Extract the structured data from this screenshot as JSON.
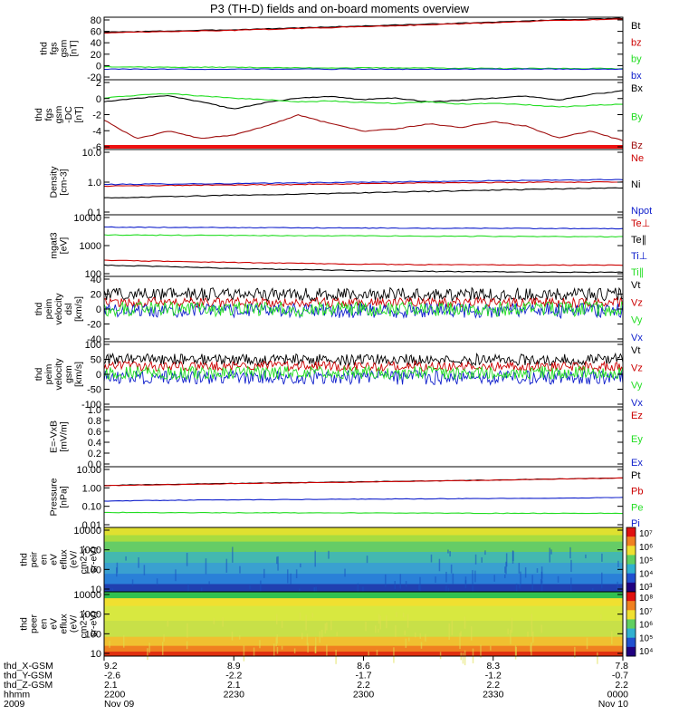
{
  "title": "P3 (TH-D) fields and on-board moments overview",
  "colors": {
    "black": "#000000",
    "red": "#cc0000",
    "green": "#22dd22",
    "blue": "#1020cc",
    "brown": "#a01010"
  },
  "chart_data": [
    {
      "type": "line",
      "ylabel": [
        "thd",
        "fgs",
        "gsm",
        "[nT]"
      ],
      "yticks": [
        "80",
        "60",
        "40",
        "20",
        "0",
        "-20"
      ],
      "ylim": [
        -20,
        80
      ],
      "legend": [
        {
          "label": "Bt",
          "color": "#000000"
        },
        {
          "label": "bz",
          "color": "#cc0000"
        },
        {
          "label": "by",
          "color": "#22dd22"
        },
        {
          "label": "bx",
          "color": "#1020cc"
        }
      ],
      "series": [
        {
          "name": "Bt",
          "color": "#000000",
          "values": [
            56,
            58,
            60,
            63,
            66,
            69,
            72,
            76,
            78
          ]
        },
        {
          "name": "bz",
          "color": "#cc0000",
          "values": [
            55,
            57,
            59,
            62,
            65,
            68,
            71,
            75,
            77
          ]
        },
        {
          "name": "by",
          "color": "#22dd22",
          "values": [
            1,
            0,
            0,
            -1,
            -1,
            -1,
            -2,
            -2,
            -2
          ]
        },
        {
          "name": "bx",
          "color": "#1020cc",
          "values": [
            -3,
            -3,
            -3,
            -3,
            -3,
            -3,
            -3,
            -3,
            -3
          ]
        }
      ]
    },
    {
      "type": "line",
      "ylabel": [
        "thd",
        "fgs",
        "gsm",
        "-DC",
        "[nT]"
      ],
      "yticks": [
        "2",
        "0",
        "-2",
        "-4",
        "-6"
      ],
      "ylim": [
        -7,
        2.5
      ],
      "legend": [
        {
          "label": "Bx",
          "color": "#000000"
        },
        {
          "label": "By",
          "color": "#22dd22"
        },
        {
          "label": "Bz",
          "color": "#a01010"
        }
      ],
      "series": [
        {
          "name": "Bx",
          "color": "#000000",
          "values": [
            -0.5,
            0,
            0.3,
            -0.5,
            -1.5,
            -0.6,
            0,
            0.2,
            -0.2,
            0,
            -0.5,
            -0.3,
            0,
            0.3,
            -0.3,
            0.5,
            1
          ]
        },
        {
          "name": "By",
          "color": "#22dd22",
          "values": [
            0,
            0.4,
            0.6,
            0.3,
            0,
            -0.2,
            -0.5,
            -0.4,
            -0.6,
            -0.7,
            -0.5,
            -0.8,
            -0.7,
            -0.9,
            -1.2,
            -1,
            -0.8
          ]
        },
        {
          "name": "Bz",
          "color": "#a01010",
          "values": [
            -3,
            -5.5,
            -4.5,
            -5.5,
            -5,
            -3.8,
            -2.3,
            -3.5,
            -4.5,
            -4.2,
            -3.5,
            -4,
            -3.2,
            -3.8,
            -5.4,
            -4.5,
            -5.8
          ]
        }
      ]
    },
    {
      "type": "line",
      "log": true,
      "ylabel": [
        "Density",
        "[cm-3]"
      ],
      "yticks": [
        "10.0",
        "1.0",
        "0.1"
      ],
      "ylim": [
        0.1,
        10
      ],
      "legend": [
        {
          "label": "Ne",
          "color": "#cc0000"
        },
        {
          "label": "Ni",
          "color": "#000000"
        },
        {
          "label": "Npot",
          "color": "#1020cc"
        }
      ],
      "series": [
        {
          "name": "Ne",
          "color": "#cc0000",
          "values": [
            0.75,
            0.8,
            0.82,
            0.85,
            0.9,
            0.95,
            0.98,
            0.99,
            1.0
          ]
        },
        {
          "name": "Ni",
          "color": "#000000",
          "values": [
            0.33,
            0.36,
            0.4,
            0.43,
            0.47,
            0.52,
            0.57,
            0.62,
            0.68
          ]
        },
        {
          "name": "Npot",
          "color": "#1020cc",
          "values": [
            0.85,
            0.88,
            0.9,
            0.95,
            1.0,
            1.05,
            1.1,
            1.15,
            1.2
          ]
        }
      ]
    },
    {
      "type": "line",
      "log": true,
      "ylabel": [
        "mgat3",
        "[eV]"
      ],
      "yticks": [
        "10000",
        "1000",
        "100"
      ],
      "ylim": [
        100,
        15000
      ],
      "legend": [
        {
          "label": "Te⊥",
          "color": "#cc0000"
        },
        {
          "label": "Te∥",
          "color": "#000000"
        },
        {
          "label": "Ti⊥",
          "color": "#1020cc"
        },
        {
          "label": "Ti∥",
          "color": "#22dd22"
        }
      ],
      "series": [
        {
          "name": "Ti⊥",
          "color": "#1020cc",
          "values": [
            5500,
            5400,
            5300,
            5200,
            5100,
            5000,
            5000,
            4900,
            4800
          ]
        },
        {
          "name": "Ti∥",
          "color": "#22dd22",
          "values": [
            2900,
            2850,
            2800,
            2750,
            2700,
            2650,
            2600,
            2550,
            2500
          ]
        },
        {
          "name": "Te⊥",
          "color": "#cc0000",
          "values": [
            370,
            340,
            310,
            290,
            270,
            260,
            255,
            250,
            250
          ]
        },
        {
          "name": "Te∥",
          "color": "#000000",
          "values": [
            250,
            220,
            190,
            175,
            160,
            150,
            145,
            140,
            140
          ]
        }
      ]
    },
    {
      "type": "line",
      "noisy": true,
      "ylabel": [
        "thd",
        "peim",
        "velocity",
        "dsl",
        "[km/s]"
      ],
      "yticks": [
        "40",
        "20",
        "0",
        "-20",
        "-40"
      ],
      "ylim": [
        -40,
        40
      ],
      "legend": [
        {
          "label": "Vt",
          "color": "#000000"
        },
        {
          "label": "Vz",
          "color": "#cc0000"
        },
        {
          "label": "Vy",
          "color": "#22dd22"
        },
        {
          "label": "Vx",
          "color": "#1020cc"
        }
      ],
      "series": [
        {
          "name": "Vt",
          "color": "#000000",
          "center": 18,
          "spread": 8
        },
        {
          "name": "Vz",
          "color": "#cc0000",
          "center": 8,
          "spread": 6
        },
        {
          "name": "Vx",
          "color": "#1020cc",
          "center": -2,
          "spread": 9
        },
        {
          "name": "Vy",
          "color": "#22dd22",
          "center": 0,
          "spread": 9
        }
      ]
    },
    {
      "type": "line",
      "noisy": true,
      "ylabel": [
        "thd",
        "peim",
        "velocity",
        "gsm",
        "[km/s]"
      ],
      "yticks": [
        "100",
        "50",
        "0",
        "-50",
        "-100"
      ],
      "ylim": [
        -100,
        100
      ],
      "legend": [
        {
          "label": "Vt",
          "color": "#000000"
        },
        {
          "label": "Vz",
          "color": "#cc0000"
        },
        {
          "label": "Vy",
          "color": "#22dd22"
        },
        {
          "label": "Vx",
          "color": "#1020cc"
        }
      ],
      "series": [
        {
          "name": "Vt",
          "color": "#000000",
          "center": 45,
          "spread": 18
        },
        {
          "name": "Vz",
          "color": "#cc0000",
          "center": 25,
          "spread": 15
        },
        {
          "name": "Vx",
          "color": "#1020cc",
          "center": -10,
          "spread": 22
        },
        {
          "name": "Vy",
          "color": "#22dd22",
          "center": 5,
          "spread": 20
        }
      ]
    },
    {
      "type": "line",
      "ylabel": [
        "E=-VxB",
        "[mV/m]"
      ],
      "yticks": [
        "1.0",
        "0.8",
        "0.6",
        "0.4",
        "0.2",
        "0.0"
      ],
      "ylim": [
        0,
        1
      ],
      "legend": [
        {
          "label": "Ez",
          "color": "#cc0000"
        },
        {
          "label": "Ey",
          "color": "#22dd22"
        },
        {
          "label": "Ex",
          "color": "#1020cc"
        }
      ],
      "series": []
    },
    {
      "type": "line",
      "log": true,
      "ylabel": [
        "Pressure",
        "[nPa]"
      ],
      "yticks": [
        "10.00",
        "1.00",
        "0.10",
        "0.01"
      ],
      "ylim": [
        0.01,
        10
      ],
      "legend": [
        {
          "label": "Pt",
          "color": "#000000"
        },
        {
          "label": "Pb",
          "color": "#cc0000"
        },
        {
          "label": "Pe",
          "color": "#22dd22"
        },
        {
          "label": "Pi",
          "color": "#1020cc"
        }
      ],
      "series": [
        {
          "name": "Pt",
          "color": "#000000",
          "values": [
            1.2,
            1.35,
            1.5,
            1.65,
            1.8,
            2.0,
            2.2,
            2.5,
            2.8
          ]
        },
        {
          "name": "Pb",
          "color": "#cc0000",
          "values": [
            1.15,
            1.3,
            1.45,
            1.6,
            1.75,
            1.95,
            2.15,
            2.45,
            2.75
          ]
        },
        {
          "name": "Pi",
          "color": "#1020cc",
          "values": [
            0.2,
            0.22,
            0.23,
            0.24,
            0.25,
            0.26,
            0.27,
            0.28,
            0.3
          ]
        },
        {
          "name": "Pe",
          "color": "#22dd22",
          "values": [
            0.055,
            0.054,
            0.053,
            0.052,
            0.052,
            0.051,
            0.05,
            0.05,
            0.05
          ]
        }
      ]
    },
    {
      "type": "heatmap",
      "ylabel": [
        "thd",
        "peir",
        "en",
        "eV",
        "eflux",
        "(eV/",
        "cm2-s-",
        "sr-eV)"
      ],
      "yticks": [
        "10000",
        "1000",
        "100",
        "10"
      ],
      "ylim": [
        10,
        20000
      ],
      "colorbar": [
        "10⁷",
        "10⁶",
        "10⁵",
        "10⁴",
        "10³"
      ],
      "bands": [
        {
          "from": 0.0,
          "to": 0.12,
          "color": "#e0e030"
        },
        {
          "from": 0.12,
          "to": 0.22,
          "color": "#a8dc40"
        },
        {
          "from": 0.22,
          "to": 0.38,
          "color": "#66cc66"
        },
        {
          "from": 0.38,
          "to": 0.55,
          "color": "#44b8b0"
        },
        {
          "from": 0.55,
          "to": 0.72,
          "color": "#3aa0d0"
        },
        {
          "from": 0.72,
          "to": 0.88,
          "color": "#2a80d8"
        },
        {
          "from": 0.88,
          "to": 1.0,
          "color": "#2040b0"
        }
      ]
    },
    {
      "type": "heatmap",
      "ylabel": [
        "thd",
        "peer",
        "en",
        "eV",
        "eflux",
        "(eV/",
        "cm2-s-",
        "sr-eV)"
      ],
      "yticks": [
        "10000",
        "1000",
        "100",
        "10"
      ],
      "ylim": [
        10,
        20000
      ],
      "colorbar": [
        "10⁸",
        "10⁷",
        "10⁶",
        "10⁵",
        "10⁴"
      ],
      "bands": [
        {
          "from": 0.0,
          "to": 0.1,
          "color": "#30c050"
        },
        {
          "from": 0.1,
          "to": 0.22,
          "color": "#f0e030"
        },
        {
          "from": 0.22,
          "to": 0.45,
          "color": "#d8e840"
        },
        {
          "from": 0.45,
          "to": 0.7,
          "color": "#c8e048"
        },
        {
          "from": 0.7,
          "to": 0.84,
          "color": "#f0c030"
        },
        {
          "from": 0.84,
          "to": 0.93,
          "color": "#f08020"
        },
        {
          "from": 0.93,
          "to": 1.0,
          "color": "#e03010"
        }
      ]
    }
  ],
  "axis": {
    "row_labels": [
      "thd_X-GSM",
      "thd_Y-GSM",
      "thd_Z-GSM",
      "hhmm",
      "2009"
    ],
    "columns": [
      {
        "rows": [
          "9.2",
          "-2.6",
          "2.1",
          "2200",
          "Nov 09"
        ]
      },
      {
        "rows": [
          "8.9",
          "-2.2",
          "2.1",
          "2230",
          ""
        ]
      },
      {
        "rows": [
          "8.6",
          "-1.7",
          "2.2",
          "2300",
          ""
        ]
      },
      {
        "rows": [
          "8.3",
          "-1.2",
          "2.2",
          "2330",
          ""
        ]
      },
      {
        "rows": [
          "7.8",
          "-0.7",
          "2.2",
          "0000",
          "Nov 10"
        ]
      }
    ]
  }
}
